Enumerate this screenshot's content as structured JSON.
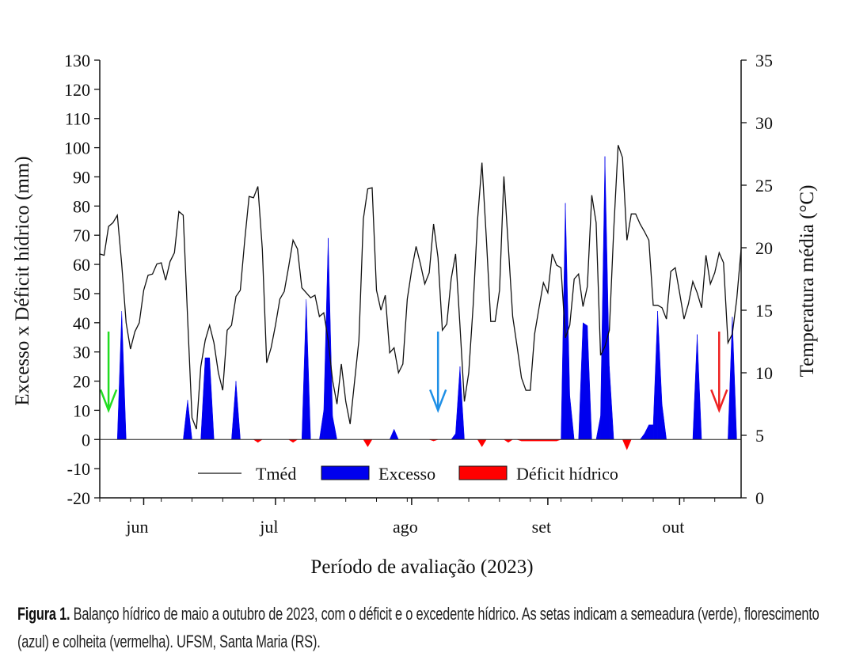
{
  "chart_data": {
    "type": "line+area",
    "xlabel": "Período de avaliação (2023)",
    "ylabel_left": "Excesso x Déficit hídrico (mm)",
    "ylabel_right": "Temperatura média (°C)",
    "xlim": [
      "2023-05-22",
      "2023-10-15"
    ],
    "ylim_left": [
      -20,
      130
    ],
    "ylim_right": [
      0,
      35
    ],
    "yticks_left": [
      -20,
      -10,
      0,
      10,
      20,
      30,
      40,
      50,
      60,
      70,
      80,
      90,
      100,
      110,
      120,
      130
    ],
    "yticks_right": [
      0,
      5,
      10,
      15,
      20,
      25,
      30,
      35
    ],
    "xticks": [
      {
        "date": "2023-06-01",
        "label": "jun"
      },
      {
        "date": "2023-07-01",
        "label": "jul"
      },
      {
        "date": "2023-08-01",
        "label": "ago"
      },
      {
        "date": "2023-09-01",
        "label": "set"
      },
      {
        "date": "2023-10-01",
        "label": "out"
      }
    ],
    "grid": false,
    "legend_placement": "bottom-center",
    "legend": [
      {
        "name": "Tméd",
        "kind": "line",
        "color": "#111111"
      },
      {
        "name": "Excesso",
        "kind": "area",
        "color": "#0000ee"
      },
      {
        "name": "Déficit hídrico",
        "kind": "area",
        "color": "#ff0000"
      }
    ],
    "series": [
      {
        "name": "Tméd",
        "axis": "right",
        "color": "#111111",
        "points": [
          [
            "2023-05-22",
            19.5
          ],
          [
            "2023-05-23",
            19.4
          ],
          [
            "2023-05-24",
            21.7
          ],
          [
            "2023-05-25",
            22.0
          ],
          [
            "2023-05-26",
            22.6
          ],
          [
            "2023-05-27",
            18.7
          ],
          [
            "2023-05-28",
            14.0
          ],
          [
            "2023-05-29",
            11.9
          ],
          [
            "2023-05-30",
            13.3
          ],
          [
            "2023-05-31",
            14.0
          ],
          [
            "2023-06-01",
            16.6
          ],
          [
            "2023-06-02",
            17.8
          ],
          [
            "2023-06-03",
            17.9
          ],
          [
            "2023-06-04",
            18.7
          ],
          [
            "2023-06-05",
            18.8
          ],
          [
            "2023-06-06",
            17.4
          ],
          [
            "2023-06-07",
            18.9
          ],
          [
            "2023-06-08",
            19.6
          ],
          [
            "2023-06-09",
            22.9
          ],
          [
            "2023-06-10",
            22.6
          ],
          [
            "2023-06-11",
            14.3
          ],
          [
            "2023-06-12",
            6.4
          ],
          [
            "2023-06-13",
            5.5
          ],
          [
            "2023-06-14",
            10.5
          ],
          [
            "2023-06-15",
            12.6
          ],
          [
            "2023-06-16",
            13.8
          ],
          [
            "2023-06-17",
            12.4
          ],
          [
            "2023-06-18",
            10.0
          ],
          [
            "2023-06-19",
            8.6
          ],
          [
            "2023-06-20",
            13.4
          ],
          [
            "2023-06-21",
            13.8
          ],
          [
            "2023-06-22",
            16.1
          ],
          [
            "2023-06-23",
            16.6
          ],
          [
            "2023-06-24",
            20.6
          ],
          [
            "2023-06-25",
            24.1
          ],
          [
            "2023-06-26",
            24.0
          ],
          [
            "2023-06-27",
            24.9
          ],
          [
            "2023-06-28",
            19.9
          ],
          [
            "2023-06-29",
            10.8
          ],
          [
            "2023-06-30",
            12.0
          ],
          [
            "2023-07-01",
            13.8
          ],
          [
            "2023-07-02",
            15.9
          ],
          [
            "2023-07-03",
            16.5
          ],
          [
            "2023-07-04",
            18.5
          ],
          [
            "2023-07-05",
            20.6
          ],
          [
            "2023-07-06",
            19.9
          ],
          [
            "2023-07-07",
            16.8
          ],
          [
            "2023-07-08",
            16.4
          ],
          [
            "2023-07-09",
            16.0
          ],
          [
            "2023-07-10",
            16.2
          ],
          [
            "2023-07-11",
            14.5
          ],
          [
            "2023-07-12",
            14.8
          ],
          [
            "2023-07-13",
            12.6
          ],
          [
            "2023-07-14",
            9.4
          ],
          [
            "2023-07-15",
            7.5
          ],
          [
            "2023-07-16",
            10.7
          ],
          [
            "2023-07-17",
            7.7
          ],
          [
            "2023-07-18",
            5.9
          ],
          [
            "2023-07-19",
            9.3
          ],
          [
            "2023-07-20",
            12.6
          ],
          [
            "2023-07-21",
            22.3
          ],
          [
            "2023-07-22",
            24.7
          ],
          [
            "2023-07-23",
            24.8
          ],
          [
            "2023-07-24",
            16.6
          ],
          [
            "2023-07-25",
            15.0
          ],
          [
            "2023-07-26",
            16.2
          ],
          [
            "2023-07-27",
            11.6
          ],
          [
            "2023-07-28",
            12.0
          ],
          [
            "2023-07-29",
            10.0
          ],
          [
            "2023-07-30",
            10.7
          ],
          [
            "2023-07-31",
            15.9
          ],
          [
            "2023-08-01",
            18.2
          ],
          [
            "2023-08-02",
            20.1
          ],
          [
            "2023-08-03",
            18.7
          ],
          [
            "2023-08-04",
            17.1
          ],
          [
            "2023-08-05",
            18.0
          ],
          [
            "2023-08-06",
            21.9
          ],
          [
            "2023-08-07",
            19.2
          ],
          [
            "2023-08-08",
            13.4
          ],
          [
            "2023-08-09",
            13.9
          ],
          [
            "2023-08-10",
            17.5
          ],
          [
            "2023-08-11",
            19.5
          ],
          [
            "2023-08-12",
            13.8
          ],
          [
            "2023-08-13",
            7.7
          ],
          [
            "2023-08-14",
            10.0
          ],
          [
            "2023-08-15",
            15.4
          ],
          [
            "2023-08-16",
            22.2
          ],
          [
            "2023-08-17",
            26.8
          ],
          [
            "2023-08-18",
            20.8
          ],
          [
            "2023-08-19",
            14.1
          ],
          [
            "2023-08-20",
            14.1
          ],
          [
            "2023-08-21",
            16.6
          ],
          [
            "2023-08-22",
            25.7
          ],
          [
            "2023-08-23",
            20.1
          ],
          [
            "2023-08-24",
            14.5
          ],
          [
            "2023-08-25",
            12.1
          ],
          [
            "2023-08-26",
            9.6
          ],
          [
            "2023-08-27",
            8.6
          ],
          [
            "2023-08-28",
            8.6
          ],
          [
            "2023-08-29",
            13.1
          ],
          [
            "2023-08-30",
            15.2
          ],
          [
            "2023-08-31",
            17.2
          ],
          [
            "2023-09-01",
            16.4
          ],
          [
            "2023-09-02",
            19.5
          ],
          [
            "2023-09-03",
            18.6
          ],
          [
            "2023-09-04",
            18.4
          ],
          [
            "2023-09-05",
            12.8
          ],
          [
            "2023-09-06",
            13.8
          ],
          [
            "2023-09-07",
            17.5
          ],
          [
            "2023-09-08",
            17.9
          ],
          [
            "2023-09-09",
            15.3
          ],
          [
            "2023-09-10",
            16.9
          ],
          [
            "2023-09-11",
            24.2
          ],
          [
            "2023-09-12",
            22.0
          ],
          [
            "2023-09-13",
            11.4
          ],
          [
            "2023-09-14",
            12.1
          ],
          [
            "2023-09-15",
            13.4
          ],
          [
            "2023-09-16",
            21.4
          ],
          [
            "2023-09-17",
            28.2
          ],
          [
            "2023-09-18",
            27.2
          ],
          [
            "2023-09-19",
            20.6
          ],
          [
            "2023-09-20",
            22.7
          ],
          [
            "2023-09-21",
            22.7
          ],
          [
            "2023-09-22",
            21.9
          ],
          [
            "2023-09-23",
            21.3
          ],
          [
            "2023-09-24",
            20.6
          ],
          [
            "2023-09-25",
            15.4
          ],
          [
            "2023-09-26",
            15.4
          ],
          [
            "2023-09-27",
            15.2
          ],
          [
            "2023-09-28",
            14.3
          ],
          [
            "2023-09-29",
            18.1
          ],
          [
            "2023-09-30",
            18.4
          ],
          [
            "2023-10-01",
            16.4
          ],
          [
            "2023-10-02",
            14.3
          ],
          [
            "2023-10-03",
            15.5
          ],
          [
            "2023-10-04",
            17.3
          ],
          [
            "2023-10-05",
            16.4
          ],
          [
            "2023-10-06",
            15.2
          ],
          [
            "2023-10-07",
            19.4
          ],
          [
            "2023-10-08",
            17.1
          ],
          [
            "2023-10-09",
            18.0
          ],
          [
            "2023-10-10",
            19.6
          ],
          [
            "2023-10-11",
            18.8
          ],
          [
            "2023-10-12",
            12.4
          ],
          [
            "2023-10-13",
            13.1
          ],
          [
            "2023-10-14",
            15.9
          ],
          [
            "2023-10-15",
            19.9
          ]
        ]
      },
      {
        "name": "Excesso",
        "axis": "left",
        "color": "#0000ee",
        "points": [
          [
            "2023-05-27",
            44
          ],
          [
            "2023-06-11",
            13.5
          ],
          [
            "2023-06-15",
            28
          ],
          [
            "2023-06-16",
            28
          ],
          [
            "2023-06-22",
            20
          ],
          [
            "2023-07-08",
            48
          ],
          [
            "2023-07-12",
            10
          ],
          [
            "2023-07-13",
            69
          ],
          [
            "2023-07-14",
            8
          ],
          [
            "2023-07-28",
            3.5
          ],
          [
            "2023-08-11",
            2
          ],
          [
            "2023-08-12",
            25
          ],
          [
            "2023-09-05",
            81
          ],
          [
            "2023-09-06",
            15
          ],
          [
            "2023-09-09",
            40
          ],
          [
            "2023-09-10",
            39
          ],
          [
            "2023-09-13",
            8
          ],
          [
            "2023-09-14",
            97
          ],
          [
            "2023-09-15",
            25
          ],
          [
            "2023-09-23",
            2
          ],
          [
            "2023-09-24",
            5
          ],
          [
            "2023-09-25",
            5
          ],
          [
            "2023-09-26",
            44
          ],
          [
            "2023-09-27",
            12
          ],
          [
            "2023-10-05",
            36
          ],
          [
            "2023-10-13",
            42
          ]
        ]
      },
      {
        "name": "Déficit hídrico",
        "axis": "left",
        "color": "#ff0000",
        "points": [
          [
            "2023-06-27",
            -1
          ],
          [
            "2023-07-05",
            -1
          ],
          [
            "2023-07-22",
            -2.5
          ],
          [
            "2023-08-06",
            -0.5
          ],
          [
            "2023-08-17",
            -2.5
          ],
          [
            "2023-08-23",
            -1
          ],
          [
            "2023-08-26",
            -0.5
          ],
          [
            "2023-08-27",
            -0.5
          ],
          [
            "2023-08-28",
            -0.5
          ],
          [
            "2023-08-29",
            -0.5
          ],
          [
            "2023-08-30",
            -0.5
          ],
          [
            "2023-08-31",
            -0.5
          ],
          [
            "2023-09-01",
            -0.5
          ],
          [
            "2023-09-02",
            -0.5
          ],
          [
            "2023-09-03",
            -0.5
          ],
          [
            "2023-09-19",
            -3.5
          ]
        ]
      }
    ],
    "annotations": [
      {
        "kind": "arrow",
        "meaning": "semeadura",
        "date": "2023-05-24",
        "from": 37,
        "to": 10,
        "color": "#22dd22"
      },
      {
        "kind": "arrow",
        "meaning": "florescimento",
        "date": "2023-08-07",
        "from": 37,
        "to": 10,
        "color": "#1e8fe6"
      },
      {
        "kind": "arrow",
        "meaning": "colheita",
        "date": "2023-10-10",
        "from": 37,
        "to": 10,
        "color": "#ee2222"
      }
    ]
  },
  "caption": {
    "label": "Figura 1.",
    "text": " Balanço hídrico de maio a outubro de 2023, com o déficit e o excedente hídrico. As setas indicam a semeadura (verde), florescimento (azul) e colheita (vermelha). UFSM, Santa Maria (RS)."
  }
}
